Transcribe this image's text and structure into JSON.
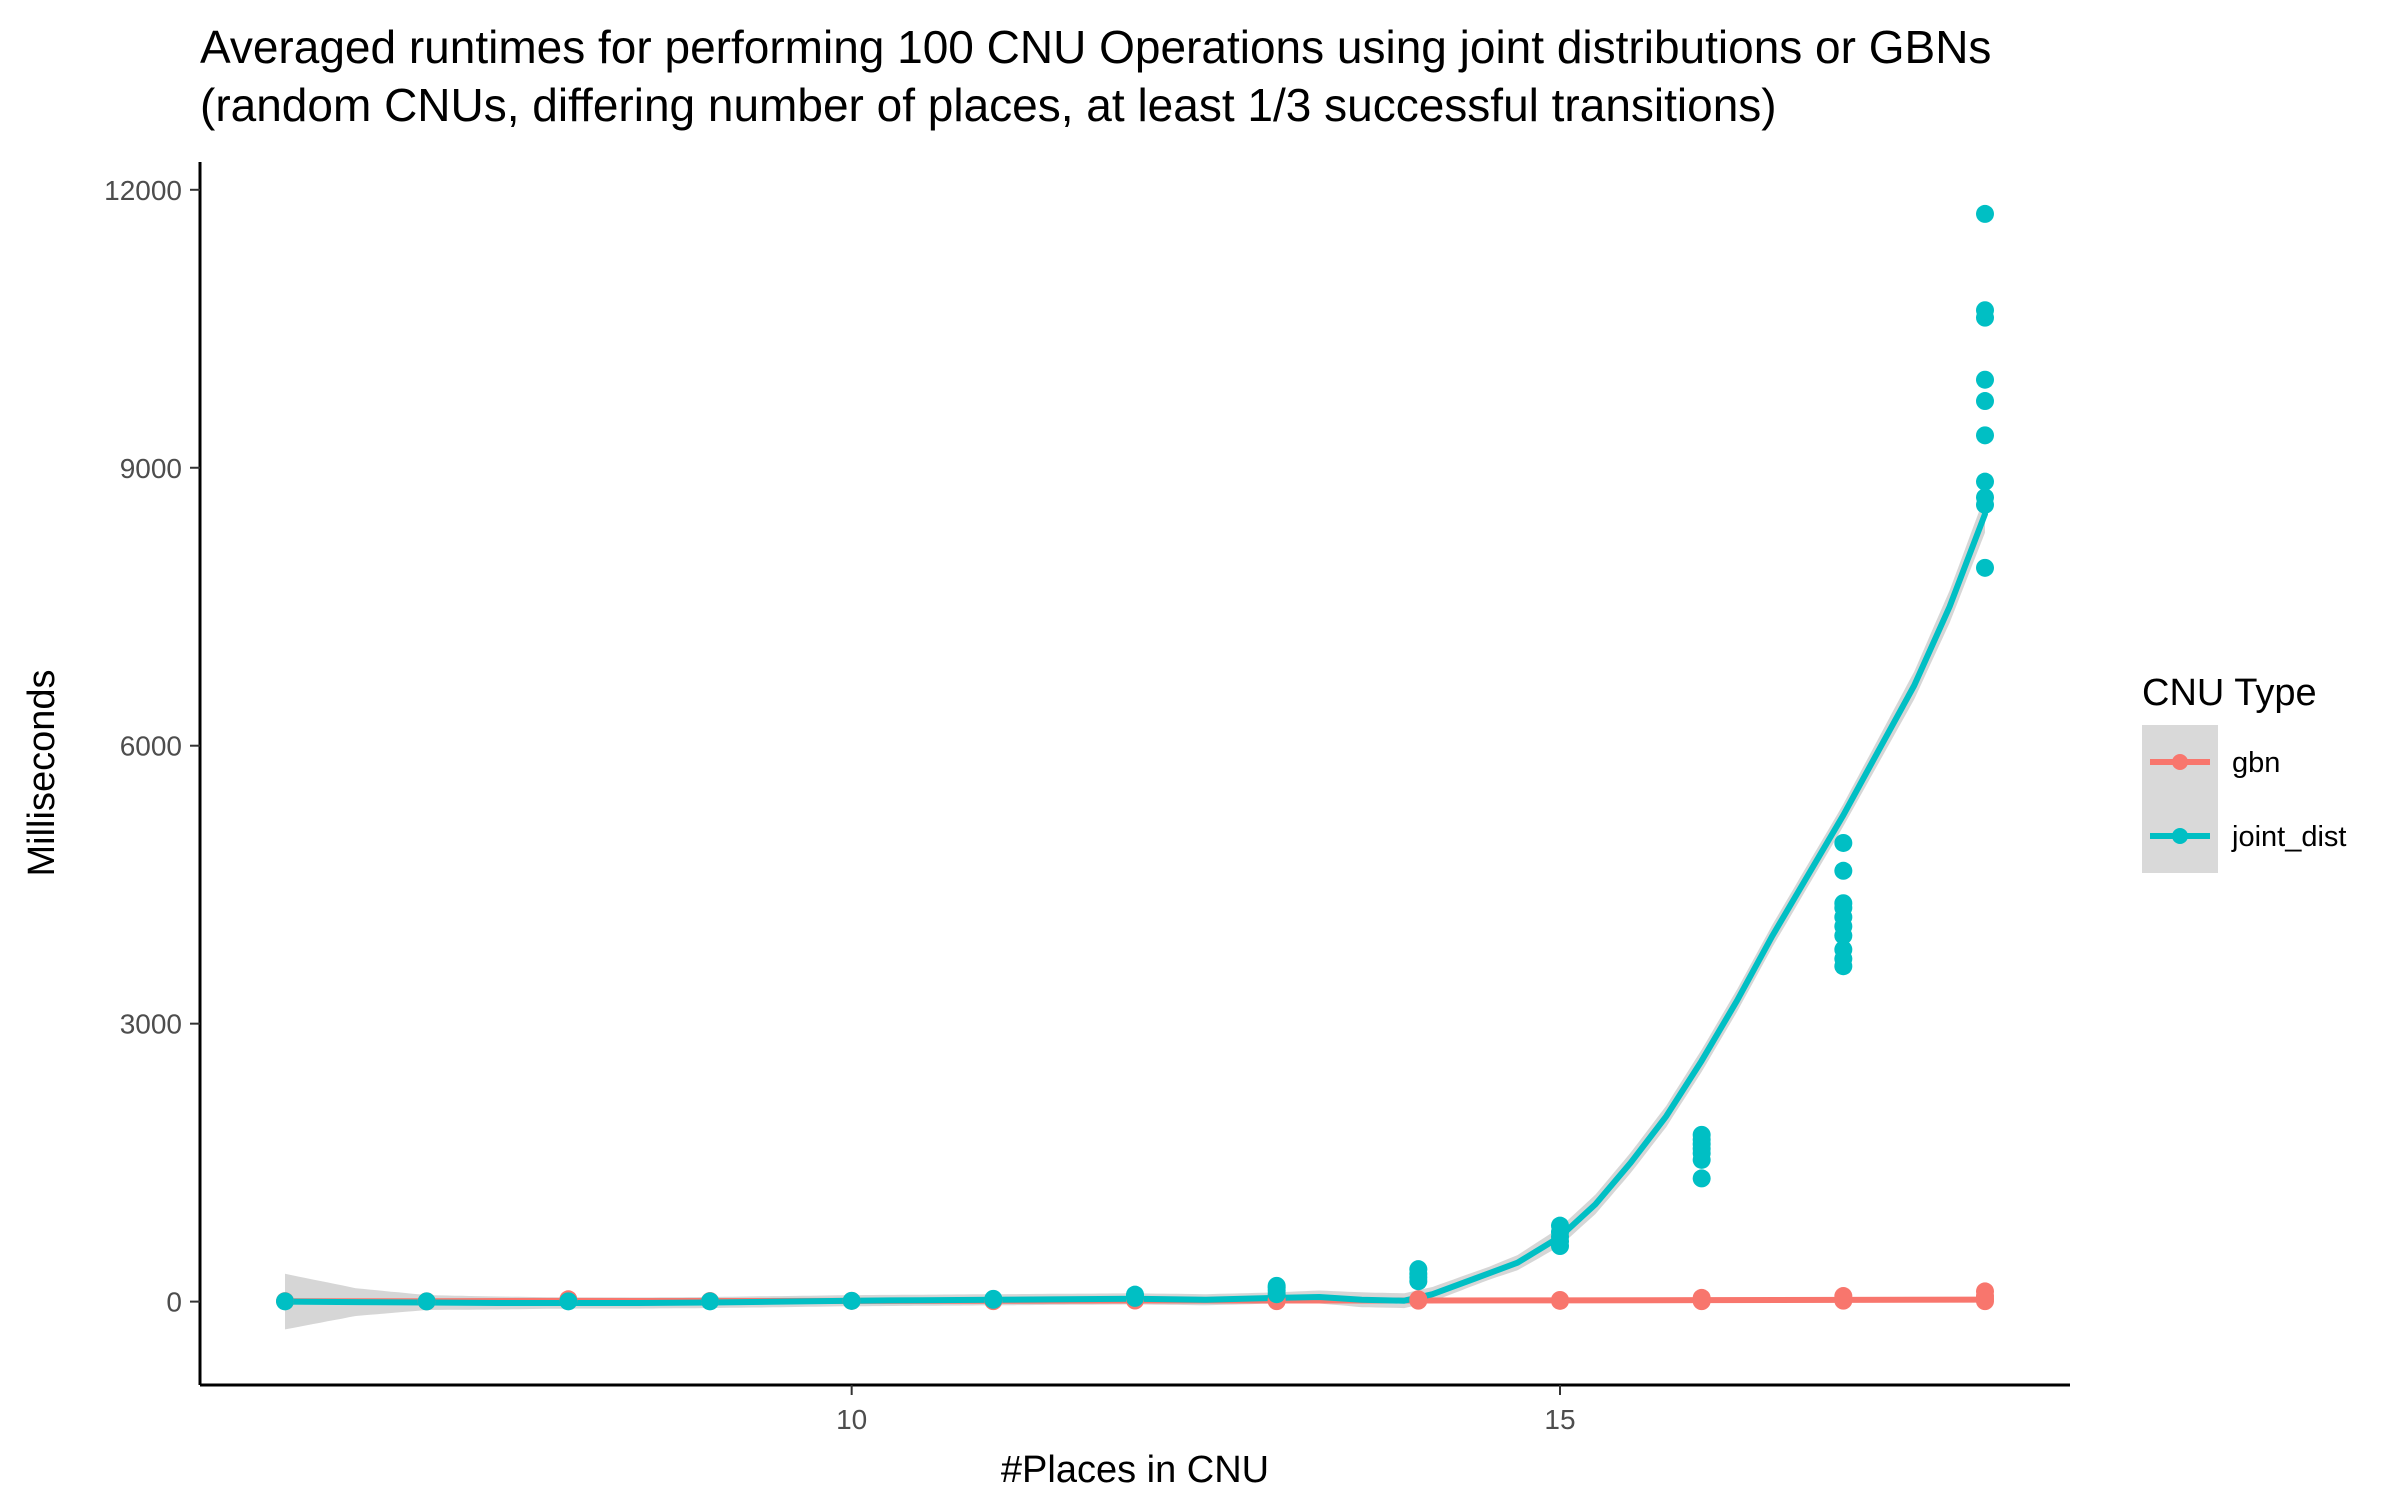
{
  "chart_data": {
    "type": "scatter",
    "title": "Averaged runtimes for performing 100 CNU Operations using joint distributions or GBNs",
    "subtitle": "(random CNUs, differing number of places, at least 1/3 successful transitions)",
    "xlabel": "#Places in CNU",
    "ylabel": "Milliseconds",
    "xlim": [
      5.4,
      18.6
    ],
    "ylim": [
      -900,
      12300
    ],
    "x_ticks": [
      10,
      15
    ],
    "y_ticks": [
      0,
      3000,
      6000,
      9000,
      12000
    ],
    "x_tick_labels": [
      "10",
      "15"
    ],
    "y_tick_labels": [
      "0",
      "3000",
      "6000",
      "9000",
      "12000"
    ],
    "grid": false,
    "legend": {
      "title": "CNU Type",
      "position": "right"
    },
    "series": [
      {
        "name": "gbn",
        "color": "#F8766D",
        "points": [
          [
            6,
            5
          ],
          [
            7,
            3
          ],
          [
            8,
            10
          ],
          [
            8,
            25
          ],
          [
            9,
            6
          ],
          [
            10,
            8
          ],
          [
            11,
            5
          ],
          [
            11,
            15
          ],
          [
            12,
            12
          ],
          [
            12,
            30
          ],
          [
            13,
            5
          ],
          [
            13,
            20
          ],
          [
            14,
            10
          ],
          [
            14,
            25
          ],
          [
            15,
            8
          ],
          [
            15,
            18
          ],
          [
            16,
            5
          ],
          [
            16,
            20
          ],
          [
            16,
            40
          ],
          [
            17,
            10
          ],
          [
            17,
            30
          ],
          [
            17,
            60
          ],
          [
            18,
            5
          ],
          [
            18,
            30
          ],
          [
            18,
            60
          ],
          [
            18,
            110
          ]
        ],
        "smooth": [
          [
            6,
            5
          ],
          [
            7,
            4
          ],
          [
            8,
            8
          ],
          [
            9,
            7
          ],
          [
            10,
            8
          ],
          [
            11,
            9
          ],
          [
            12,
            12
          ],
          [
            13,
            12
          ],
          [
            14,
            12
          ],
          [
            15,
            13
          ],
          [
            16,
            16
          ],
          [
            17,
            19
          ],
          [
            18,
            22
          ]
        ]
      },
      {
        "name": "joint_dist",
        "color": "#00BFC4",
        "points": [
          [
            6,
            3
          ],
          [
            7,
            2
          ],
          [
            8,
            3
          ],
          [
            9,
            3
          ],
          [
            10,
            8
          ],
          [
            11,
            20
          ],
          [
            11,
            30
          ],
          [
            12,
            40
          ],
          [
            12,
            60
          ],
          [
            12,
            75
          ],
          [
            13,
            80
          ],
          [
            13,
            120
          ],
          [
            13,
            150
          ],
          [
            13,
            170
          ],
          [
            14,
            220
          ],
          [
            14,
            260
          ],
          [
            14,
            300
          ],
          [
            14,
            350
          ],
          [
            15,
            600
          ],
          [
            15,
            650
          ],
          [
            15,
            700
          ],
          [
            15,
            750
          ],
          [
            15,
            820
          ],
          [
            16,
            1330
          ],
          [
            16,
            1530
          ],
          [
            16,
            1600
          ],
          [
            16,
            1650
          ],
          [
            16,
            1700
          ],
          [
            16,
            1750
          ],
          [
            16,
            1800
          ],
          [
            17,
            3620
          ],
          [
            17,
            3700
          ],
          [
            17,
            3800
          ],
          [
            17,
            3950
          ],
          [
            17,
            4050
          ],
          [
            17,
            4150
          ],
          [
            17,
            4250
          ],
          [
            17,
            4300
          ],
          [
            17,
            4650
          ],
          [
            17,
            4950
          ],
          [
            18,
            7920
          ],
          [
            18,
            8600
          ],
          [
            18,
            8680
          ],
          [
            18,
            8850
          ],
          [
            18,
            9350
          ],
          [
            18,
            9720
          ],
          [
            18,
            9950
          ],
          [
            18,
            10620
          ],
          [
            18,
            10700
          ],
          [
            18,
            11740
          ]
        ],
        "smooth": [
          [
            6,
            0
          ],
          [
            6.5,
            -5
          ],
          [
            7,
            -10
          ],
          [
            7.5,
            -15
          ],
          [
            8,
            -15
          ],
          [
            8.5,
            -15
          ],
          [
            9,
            -10
          ],
          [
            9.5,
            0
          ],
          [
            10,
            10
          ],
          [
            10.5,
            15
          ],
          [
            11,
            20
          ],
          [
            11.5,
            25
          ],
          [
            12,
            30
          ],
          [
            12.5,
            20
          ],
          [
            13,
            40
          ],
          [
            13.3,
            50
          ],
          [
            13.6,
            20
          ],
          [
            13.9,
            10
          ],
          [
            14.1,
            80
          ],
          [
            14.4,
            250
          ],
          [
            14.7,
            420
          ],
          [
            15,
            700
          ],
          [
            15.25,
            1050
          ],
          [
            15.5,
            1500
          ],
          [
            15.75,
            2000
          ],
          [
            16,
            2600
          ],
          [
            16.25,
            3250
          ],
          [
            16.5,
            3950
          ],
          [
            16.75,
            4600
          ],
          [
            17,
            5250
          ],
          [
            17.25,
            5950
          ],
          [
            17.5,
            6650
          ],
          [
            17.75,
            7500
          ],
          [
            18,
            8500
          ]
        ],
        "ci_halfwidth": [
          [
            6,
            300
          ],
          [
            6.5,
            150
          ],
          [
            7,
            80
          ],
          [
            8,
            60
          ],
          [
            9,
            60
          ],
          [
            10,
            60
          ],
          [
            11,
            60
          ],
          [
            12,
            60
          ],
          [
            13,
            60
          ],
          [
            13.6,
            80
          ],
          [
            14,
            80
          ],
          [
            14.5,
            70
          ],
          [
            15,
            100
          ],
          [
            16,
            120
          ],
          [
            17,
            120
          ],
          [
            17.5,
            150
          ],
          [
            18,
            200
          ]
        ]
      }
    ]
  }
}
